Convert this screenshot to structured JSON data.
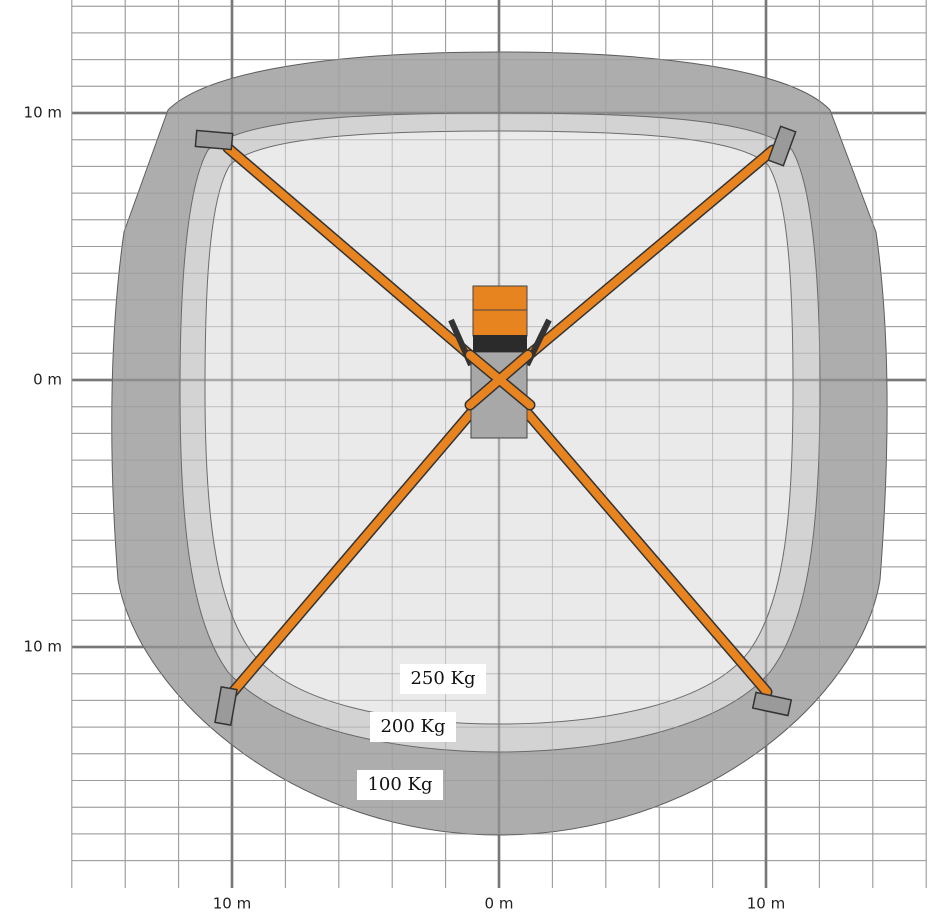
{
  "y_labels": [
    "10 m",
    "0 m",
    "10 m"
  ],
  "x_labels": [
    "10 m",
    "0 m",
    "10 m"
  ],
  "zones": [
    {
      "label": "250 Kg"
    },
    {
      "label": "200 Kg"
    },
    {
      "label": "100 Kg"
    }
  ]
}
